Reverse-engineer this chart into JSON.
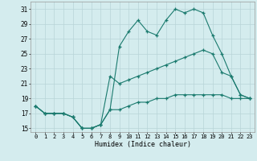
{
  "xlabel": "Humidex (Indice chaleur)",
  "xlim": [
    -0.5,
    23.5
  ],
  "ylim": [
    14.5,
    32
  ],
  "xticks": [
    0,
    1,
    2,
    3,
    4,
    5,
    6,
    7,
    8,
    9,
    10,
    11,
    12,
    13,
    14,
    15,
    16,
    17,
    18,
    19,
    20,
    21,
    22,
    23
  ],
  "yticks": [
    15,
    17,
    19,
    21,
    23,
    25,
    27,
    29,
    31
  ],
  "background_color": "#d4ecee",
  "grid_color": "#b8d4d8",
  "line_color": "#1a7a6e",
  "line1_x": [
    0,
    1,
    2,
    3,
    4,
    5,
    6,
    7,
    8,
    9,
    10,
    11,
    12,
    13,
    14,
    15,
    16,
    17,
    18,
    19,
    20,
    21,
    22,
    23
  ],
  "line1_y": [
    18,
    17,
    17,
    17,
    16.5,
    15,
    15,
    15.5,
    17.5,
    26,
    28,
    29.5,
    28,
    27.5,
    29.5,
    31,
    30.5,
    31,
    30.5,
    27.5,
    25,
    22,
    19.5,
    19
  ],
  "line2_x": [
    0,
    1,
    2,
    3,
    4,
    5,
    6,
    7,
    8,
    9,
    10,
    11,
    12,
    13,
    14,
    15,
    16,
    17,
    18,
    19,
    20,
    21,
    22,
    23
  ],
  "line2_y": [
    18,
    17,
    17,
    17,
    16.5,
    15,
    15,
    15.5,
    22,
    21,
    21.5,
    22,
    22.5,
    23,
    23.5,
    24,
    24.5,
    25,
    25.5,
    25,
    22.5,
    22,
    19.5,
    19
  ],
  "line3_x": [
    0,
    1,
    2,
    3,
    4,
    5,
    6,
    7,
    8,
    9,
    10,
    11,
    12,
    13,
    14,
    15,
    16,
    17,
    18,
    19,
    20,
    21,
    22,
    23
  ],
  "line3_y": [
    18,
    17,
    17,
    17,
    16.5,
    15,
    15,
    15.5,
    17.5,
    17.5,
    18,
    18.5,
    18.5,
    19,
    19,
    19.5,
    19.5,
    19.5,
    19.5,
    19.5,
    19.5,
    19,
    19,
    19
  ]
}
